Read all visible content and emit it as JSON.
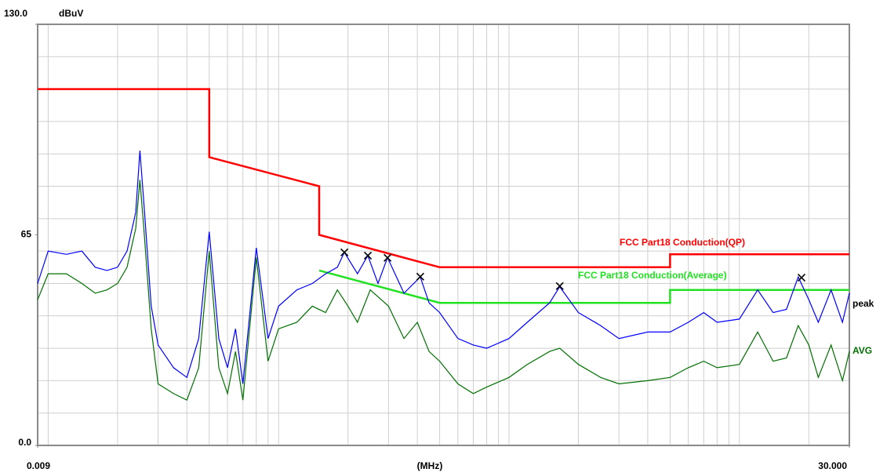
{
  "chart_data": {
    "type": "line",
    "xscale": "log",
    "y_unit": "dBuV",
    "xlabel": "(MHz)",
    "xlim": [
      0.009,
      30
    ],
    "ylim": [
      0,
      130
    ],
    "xticks": [
      0.009,
      {
        "value": 30,
        "label": "30.000"
      }
    ],
    "yticks": [
      {
        "value": 0,
        "label": "0.0"
      },
      65,
      {
        "value": 130,
        "label": "130.0"
      }
    ],
    "grid": true,
    "xgrid": [
      0.01,
      0.02,
      0.03,
      0.04,
      0.05,
      0.06,
      0.07,
      0.08,
      0.09,
      0.1,
      0.2,
      0.3,
      0.4,
      0.5,
      0.6,
      0.7,
      0.8,
      0.9,
      1,
      2,
      3,
      4,
      5,
      6,
      7,
      8,
      9,
      10,
      20
    ],
    "ygrid": [
      10,
      20,
      30,
      40,
      50,
      60,
      70,
      80,
      90,
      100,
      110,
      120
    ],
    "series": [
      {
        "name": "FCC Part18 Conduction(QP)",
        "color": "#ff0000",
        "x": [
          0.009,
          0.05,
          0.05,
          0.15,
          0.15,
          0.5,
          5,
          5,
          30
        ],
        "values": [
          110,
          110,
          89,
          80,
          65,
          55,
          55,
          59,
          59
        ]
      },
      {
        "name": "FCC Part18 Conduction(Average)",
        "color": "#22e022",
        "x": [
          0.15,
          0.5,
          5,
          5,
          30
        ],
        "values": [
          54,
          44,
          44,
          48,
          48
        ]
      },
      {
        "name": "peak",
        "color": "#0000ff",
        "x": [
          0.009,
          0.01,
          0.012,
          0.014,
          0.016,
          0.018,
          0.02,
          0.022,
          0.024,
          0.025,
          0.026,
          0.028,
          0.03,
          0.035,
          0.04,
          0.045,
          0.05,
          0.055,
          0.06,
          0.065,
          0.07,
          0.08,
          0.09,
          0.1,
          0.12,
          0.14,
          0.16,
          0.18,
          0.193,
          0.22,
          0.244,
          0.27,
          0.297,
          0.35,
          0.412,
          0.45,
          0.5,
          0.6,
          0.7,
          0.8,
          1,
          1.2,
          1.5,
          1.66,
          2,
          2.5,
          3,
          4,
          5,
          6,
          7,
          8,
          10,
          12,
          14,
          16,
          18,
          20,
          22,
          25,
          28,
          30
        ],
        "values": [
          50,
          60,
          59,
          60,
          55,
          54,
          55,
          60,
          72,
          91,
          75,
          43,
          31,
          24,
          21,
          33,
          66,
          33,
          24,
          36,
          19,
          61,
          33,
          43,
          48,
          50,
          53,
          55,
          59.6,
          53,
          58.6,
          50,
          58,
          47,
          52,
          44,
          41,
          33,
          31,
          30,
          33,
          38,
          44,
          49,
          41,
          37,
          33,
          35,
          35,
          38,
          41,
          38,
          39,
          48,
          41,
          42,
          52,
          45,
          38,
          48,
          38,
          47
        ]
      },
      {
        "name": "AVG",
        "color": "#007000",
        "x": [
          0.009,
          0.01,
          0.012,
          0.014,
          0.016,
          0.018,
          0.02,
          0.022,
          0.024,
          0.025,
          0.026,
          0.028,
          0.03,
          0.035,
          0.04,
          0.045,
          0.05,
          0.055,
          0.06,
          0.065,
          0.07,
          0.08,
          0.09,
          0.1,
          0.12,
          0.14,
          0.16,
          0.18,
          0.2,
          0.22,
          0.25,
          0.3,
          0.35,
          0.4,
          0.45,
          0.5,
          0.6,
          0.7,
          0.8,
          1,
          1.2,
          1.5,
          1.66,
          2,
          2.5,
          3,
          4,
          5,
          6,
          7,
          8,
          10,
          12,
          14,
          16,
          18,
          20,
          22,
          25,
          28,
          30
        ],
        "values": [
          45,
          53,
          53,
          50,
          47,
          48,
          50,
          55,
          67,
          82,
          67,
          36,
          19,
          16,
          14,
          24,
          60,
          24,
          16,
          29,
          14,
          58,
          26,
          36,
          38,
          43,
          41,
          48,
          43,
          38,
          48,
          43,
          33,
          38,
          29,
          26,
          19,
          16,
          18,
          21,
          25,
          29,
          30,
          25,
          21,
          19,
          20,
          21,
          24,
          26,
          24,
          25,
          35,
          26,
          27,
          37,
          31,
          21,
          31,
          20,
          29
        ]
      }
    ],
    "markers": {
      "color": "#000000",
      "x": [
        0.193,
        0.244,
        0.297,
        0.412,
        1.66,
        18.6
      ],
      "values": [
        59.6,
        58.6,
        57.9,
        52.1,
        49.2,
        51.8
      ]
    }
  }
}
